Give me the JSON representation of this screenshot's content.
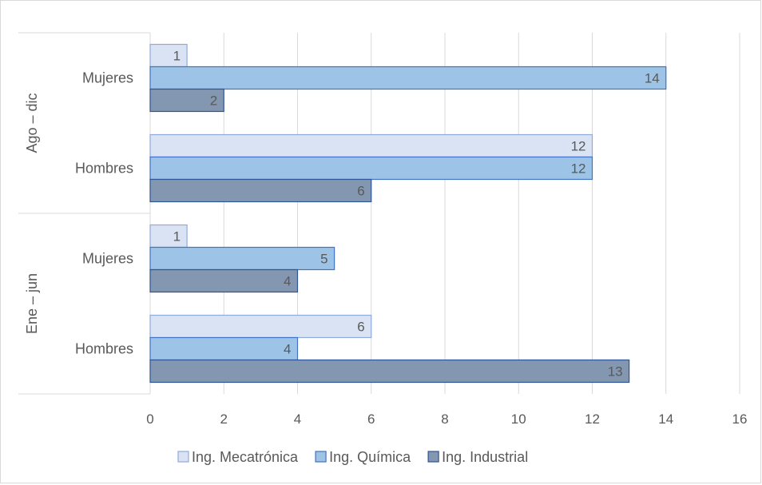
{
  "chart_data": {
    "type": "bar",
    "orientation": "horizontal",
    "xlim": [
      0,
      16
    ],
    "x_ticks": [
      0,
      2,
      4,
      6,
      8,
      10,
      12,
      14,
      16
    ],
    "grid": "vertical",
    "legend_position": "bottom",
    "groups": [
      {
        "label": "Ene – jun",
        "categories": [
          "Hombres",
          "Mujeres"
        ]
      },
      {
        "label": "Ago – dic",
        "categories": [
          "Hombres",
          "Mujeres"
        ]
      }
    ],
    "categories": [
      "Ene – jun / Hombres",
      "Ene – jun / Mujeres",
      "Ago – dic / Hombres",
      "Ago – dic / Mujeres"
    ],
    "series": [
      {
        "name": "Ing. Mecatrónica",
        "color": "#dae3f3",
        "stroke": "#8faadc",
        "values": [
          6,
          1,
          12,
          1
        ]
      },
      {
        "name": "Ing. Química",
        "color": "#9dc3e6",
        "stroke": "#4472c4",
        "values": [
          4,
          5,
          12,
          14
        ]
      },
      {
        "name": "Ing. Industrial",
        "color": "#8497b0",
        "stroke": "#2f5597",
        "values": [
          13,
          4,
          6,
          2
        ]
      }
    ]
  }
}
